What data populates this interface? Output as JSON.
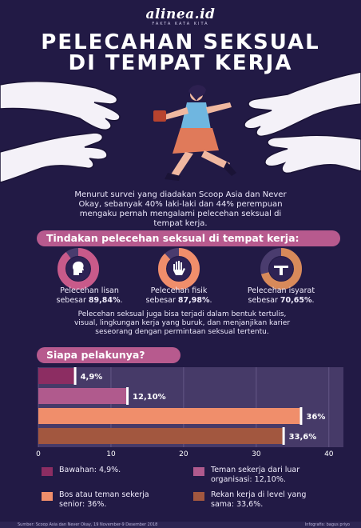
{
  "brand": {
    "name": "alinea.id",
    "tagline": "FAKTA KATA KITA"
  },
  "title": {
    "line1": "PELECAHAN SEKSUAL",
    "line2": "DI TEMPAT KERJA"
  },
  "intro": {
    "line1": "Menurut survei yang diadakan Scoop Asia dan Never",
    "line2": "Okay, sebanyak 40% laki-laki dan 44% perempuan",
    "line3": "mengaku pernah mengalami pelecehan seksual di",
    "line4": "tempat kerja."
  },
  "section1": {
    "heading": "Tindakan pelecehan seksual di tempat kerja:",
    "items": [
      {
        "label": "Pelecehan lisan",
        "prefix": "sebesar",
        "value_text": "89,84%",
        "suffix": ".",
        "percent": 89.84,
        "icon": "speaking-head-icon"
      },
      {
        "label": "Pelecehan fisik",
        "prefix": "sebesar",
        "value_text": "87,98%",
        "suffix": ".",
        "percent": 87.98,
        "icon": "raised-hand-icon"
      },
      {
        "label": "Pelecehan isyarat",
        "prefix": "sebesar",
        "value_text": "70,65%",
        "suffix": ".",
        "percent": 70.65,
        "icon": "gesture-icon"
      }
    ],
    "note": {
      "line1": "Pelecehan seksual juga bisa terjadi dalam bentuk tertulis,",
      "line2": "visual, lingkungan kerja yang buruk, dan menjanjikan karier",
      "line3": "seseorang dengan permintaan seksual tertentu."
    }
  },
  "section2": {
    "heading": "Siapa pelakunya?"
  },
  "chart_data": {
    "type": "bar",
    "orientation": "horizontal",
    "categories": [
      "Bawahan",
      "Teman sekerja dari luar organisasi",
      "Bos atau teman sekerja senior",
      "Rekan kerja di level yang sama"
    ],
    "values": [
      4.9,
      12.1,
      36,
      33.6
    ],
    "labels": [
      "4,9%",
      "12,10%",
      "36%",
      "33,6%"
    ],
    "xlim": [
      0,
      42
    ],
    "xticks": [
      0,
      10,
      20,
      30,
      40
    ],
    "colors": [
      "#8c2d62",
      "#b05a8d",
      "#f08e6b",
      "#a2573f"
    ],
    "grid": true
  },
  "legend": [
    {
      "line1": "Bawahan: 4,9%.",
      "line2": "",
      "color": "#8c2d62"
    },
    {
      "line1": "Teman sekerja dari luar",
      "line2": "organisasi: 12,10%.",
      "color": "#b05a8d"
    },
    {
      "line1": "Bos atau teman sekerja",
      "line2": "senior: 36%.",
      "color": "#f08e6b"
    },
    {
      "line1": "Rekan kerja di level yang",
      "line2": "sama: 33,6%.",
      "color": "#a2573f"
    }
  ],
  "footer": {
    "source": "Sumber: Scoop Asia dan Never Okay, 19 November-9 Desember 2018",
    "credit": "Infografis: bagus priyo"
  },
  "colors": {
    "background": "#221a45",
    "pill": "#b75a8e",
    "ring_base": "#4a3c6e",
    "ring_lisan": "#c85a8a",
    "ring_fisik": "#f08e6b",
    "ring_isyarat": "#d88a5a"
  }
}
